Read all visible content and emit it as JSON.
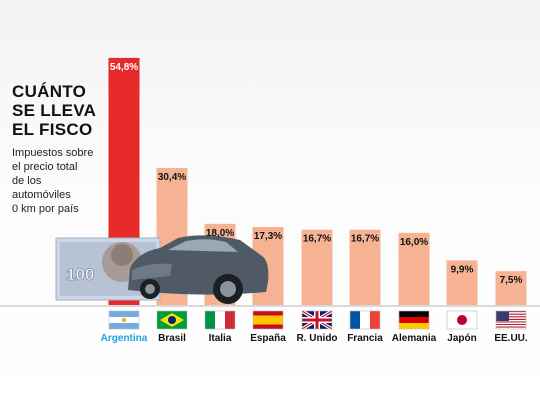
{
  "title_lines": [
    "CUÁNTO",
    "SE LLEVA",
    "EL FISCO"
  ],
  "subtitle_lines": [
    "Impuestos sobre",
    "el precio total",
    "de los",
    "automóviles",
    "0 km por país"
  ],
  "banknote_value": "100",
  "chart_data": {
    "type": "bar",
    "title": "CUÁNTO SE LLEVA EL FISCO",
    "subtitle": "Impuestos sobre el precio total de los automóviles 0 km por país",
    "categories": [
      "Argentina",
      "Brasil",
      "Italia",
      "España",
      "R. Unido",
      "Francia",
      "Alemania",
      "Japón",
      "EE.UU."
    ],
    "values": [
      54.8,
      30.4,
      18.0,
      17.3,
      16.7,
      16.7,
      16.0,
      9.9,
      7.5
    ],
    "value_labels": [
      "54,8%",
      "30,4%",
      "18,0%",
      "17,3%",
      "16,7%",
      "16,7%",
      "16,0%",
      "9,9%",
      "7,5%"
    ],
    "flags": [
      "argentina-flag-icon",
      "brazil-flag-icon",
      "italy-flag-icon",
      "spain-flag-icon",
      "uk-flag-icon",
      "france-flag-icon",
      "germany-flag-icon",
      "japan-flag-icon",
      "usa-flag-icon"
    ],
    "ylim": [
      0,
      55
    ],
    "grid": false,
    "colors": {
      "highlight": "#e62a2a",
      "bar": "#f6b394",
      "highlight_label": "#1fa3dc"
    }
  }
}
